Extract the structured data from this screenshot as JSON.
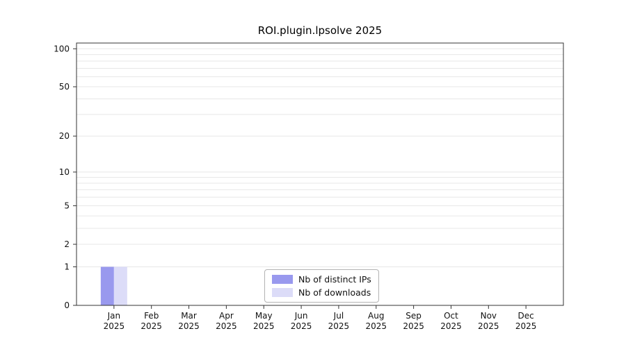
{
  "figure": {
    "background": "#ffffff"
  },
  "chart_data": {
    "type": "bar",
    "title": "ROI.plugin.lpsolve 2025",
    "categories": [
      "Jan",
      "Feb",
      "Mar",
      "Apr",
      "May",
      "Jun",
      "Jul",
      "Aug",
      "Sep",
      "Oct",
      "Nov",
      "Dec"
    ],
    "year": "2025",
    "series": [
      {
        "name": "Nb of distinct IPs",
        "color": "#9999ee",
        "values": [
          1,
          0,
          0,
          0,
          0,
          0,
          0,
          0,
          0,
          0,
          0,
          0
        ]
      },
      {
        "name": "Nb of downloads",
        "color": "#dcdcf8",
        "values": [
          1,
          0,
          0,
          0,
          0,
          0,
          0,
          0,
          0,
          0,
          0,
          0
        ]
      }
    ],
    "scale": "log1p",
    "ylim": [
      0,
      111
    ],
    "yticks": [
      0,
      1,
      2,
      5,
      10,
      20,
      50,
      100
    ],
    "grid_values": [
      1,
      2,
      3,
      4,
      5,
      6,
      7,
      8,
      9,
      10,
      20,
      30,
      40,
      50,
      60,
      70,
      80,
      90,
      100
    ],
    "legend_position": "inside-bottom-center",
    "colors": {
      "grid": "#e7e7e7",
      "axis": "#333333",
      "text": "#111111",
      "legend_border": "#b3b3b3"
    }
  }
}
